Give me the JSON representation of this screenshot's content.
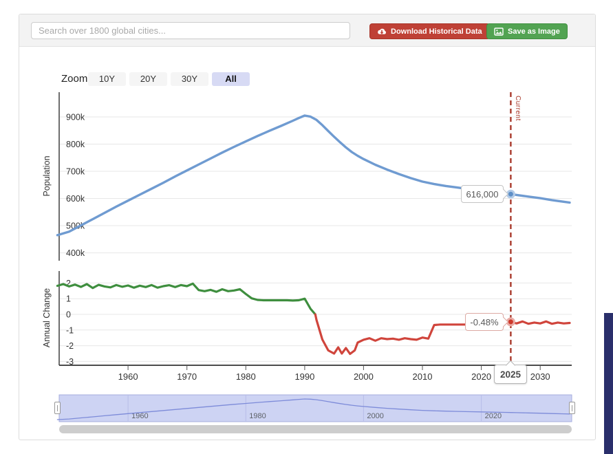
{
  "header": {
    "search_placeholder": "Search over 1800 global cities...",
    "download_button": "Download Historical Data",
    "save_button": "Save as Image",
    "download_color": "#bf4136",
    "save_color": "#52a352"
  },
  "zoom_controls": {
    "label": "Zoom",
    "options": [
      {
        "label": "10Y",
        "active": false
      },
      {
        "label": "20Y",
        "active": false
      },
      {
        "label": "30Y",
        "active": false
      },
      {
        "label": "All",
        "active": true
      }
    ]
  },
  "chart_data": [
    {
      "name": "population-history",
      "type": "line",
      "ylabel": "Population",
      "x_range": [
        1948,
        2035
      ],
      "xticks": [
        1960,
        1970,
        1980,
        1990,
        2000,
        2010,
        2020,
        2030
      ],
      "yticks": [
        {
          "value": 900,
          "label": "900k"
        },
        {
          "value": 800,
          "label": "800k"
        },
        {
          "value": 700,
          "label": "700k"
        },
        {
          "value": 600,
          "label": "600k"
        },
        {
          "value": 500,
          "label": "500k"
        },
        {
          "value": 400,
          "label": "400k"
        }
      ],
      "series": [
        {
          "name": "population",
          "color": "#6f9bd1",
          "unit": "thousands",
          "points": [
            [
              1948,
              465
            ],
            [
              1950,
              478
            ],
            [
              1952,
              501
            ],
            [
              1954,
              524
            ],
            [
              1956,
              547
            ],
            [
              1958,
              570
            ],
            [
              1960,
              592
            ],
            [
              1962,
              614
            ],
            [
              1964,
              636
            ],
            [
              1966,
              658
            ],
            [
              1968,
              681
            ],
            [
              1970,
              703
            ],
            [
              1972,
              725
            ],
            [
              1974,
              747
            ],
            [
              1976,
              769
            ],
            [
              1978,
              790
            ],
            [
              1980,
              810
            ],
            [
              1982,
              830
            ],
            [
              1984,
              849
            ],
            [
              1986,
              867
            ],
            [
              1988,
              886
            ],
            [
              1989,
              896
            ],
            [
              1990,
              905
            ],
            [
              1991,
              901
            ],
            [
              1992,
              889
            ],
            [
              1993,
              870
            ],
            [
              1994,
              848
            ],
            [
              1995,
              827
            ],
            [
              1996,
              807
            ],
            [
              1997,
              788
            ],
            [
              1998,
              771
            ],
            [
              1999,
              757
            ],
            [
              2000,
              745
            ],
            [
              2002,
              724
            ],
            [
              2004,
              706
            ],
            [
              2006,
              690
            ],
            [
              2008,
              675
            ],
            [
              2010,
              662
            ],
            [
              2012,
              653
            ],
            [
              2014,
              646
            ],
            [
              2016,
              640
            ],
            [
              2018,
              634
            ],
            [
              2020,
              629
            ],
            [
              2022,
              624
            ],
            [
              2024,
              619
            ],
            [
              2025,
              616
            ],
            [
              2026,
              613
            ],
            [
              2028,
              607
            ],
            [
              2030,
              601
            ],
            [
              2032,
              594
            ],
            [
              2034,
              588
            ],
            [
              2035,
              585
            ]
          ]
        }
      ],
      "marker": {
        "year": 2025,
        "value": 616000,
        "label": "616,000",
        "color": "#5e8fc7"
      },
      "current_line": {
        "year": 2025,
        "label": "Current",
        "year_label": "2025",
        "color": "#a93a2c"
      }
    },
    {
      "name": "annual-change",
      "type": "line",
      "ylabel": "Annual Change",
      "yticks": [
        {
          "value": 2,
          "label": "2"
        },
        {
          "value": 1,
          "label": "1"
        },
        {
          "value": 0,
          "label": "0"
        },
        {
          "value": -1,
          "label": "-1"
        },
        {
          "value": -2,
          "label": "-2"
        },
        {
          "value": -3,
          "label": "-3"
        }
      ],
      "series": [
        {
          "name": "annual-change-positive",
          "color": "#3e8e3e",
          "unit": "percent",
          "points": [
            [
              1948,
              1.82
            ],
            [
              1949,
              1.93
            ],
            [
              1950,
              1.78
            ],
            [
              1951,
              1.9
            ],
            [
              1952,
              1.75
            ],
            [
              1953,
              1.93
            ],
            [
              1954,
              1.68
            ],
            [
              1955,
              1.88
            ],
            [
              1956,
              1.78
            ],
            [
              1957,
              1.72
            ],
            [
              1958,
              1.87
            ],
            [
              1959,
              1.76
            ],
            [
              1960,
              1.84
            ],
            [
              1961,
              1.7
            ],
            [
              1962,
              1.83
            ],
            [
              1963,
              1.74
            ],
            [
              1964,
              1.87
            ],
            [
              1965,
              1.7
            ],
            [
              1966,
              1.8
            ],
            [
              1967,
              1.86
            ],
            [
              1968,
              1.74
            ],
            [
              1969,
              1.87
            ],
            [
              1970,
              1.8
            ],
            [
              1971,
              1.96
            ],
            [
              1972,
              1.55
            ],
            [
              1973,
              1.48
            ],
            [
              1974,
              1.56
            ],
            [
              1975,
              1.44
            ],
            [
              1976,
              1.6
            ],
            [
              1977,
              1.48
            ],
            [
              1978,
              1.52
            ],
            [
              1979,
              1.6
            ],
            [
              1980,
              1.3
            ],
            [
              1981,
              1.02
            ],
            [
              1982,
              0.92
            ],
            [
              1983,
              0.9
            ],
            [
              1984,
              0.9
            ],
            [
              1985,
              0.9
            ],
            [
              1986,
              0.9
            ],
            [
              1987,
              0.9
            ],
            [
              1988,
              0.88
            ],
            [
              1989,
              0.9
            ],
            [
              1990,
              1.0
            ],
            [
              1991,
              0.35
            ],
            [
              1991.8,
              0
            ]
          ]
        },
        {
          "name": "annual-change-negative",
          "color": "#d0453c",
          "unit": "percent",
          "points": [
            [
              1991.8,
              0
            ],
            [
              1992,
              -0.35
            ],
            [
              1993,
              -1.6
            ],
            [
              1994,
              -2.3
            ],
            [
              1995,
              -2.5
            ],
            [
              1995.7,
              -2.1
            ],
            [
              1996.3,
              -2.5
            ],
            [
              1997,
              -2.15
            ],
            [
              1997.7,
              -2.52
            ],
            [
              1998.5,
              -2.3
            ],
            [
              1999,
              -1.8
            ],
            [
              2000,
              -1.62
            ],
            [
              2001,
              -1.52
            ],
            [
              2002,
              -1.68
            ],
            [
              2003,
              -1.52
            ],
            [
              2004,
              -1.58
            ],
            [
              2005,
              -1.55
            ],
            [
              2006,
              -1.62
            ],
            [
              2007,
              -1.52
            ],
            [
              2008,
              -1.58
            ],
            [
              2009,
              -1.62
            ],
            [
              2010,
              -1.48
            ],
            [
              2011,
              -1.55
            ],
            [
              2012,
              -0.68
            ],
            [
              2013,
              -0.65
            ],
            [
              2015,
              -0.65
            ],
            [
              2017,
              -0.65
            ],
            [
              2019,
              -0.65
            ],
            [
              2021,
              -0.65
            ],
            [
              2023,
              -0.65
            ],
            [
              2024,
              -0.55
            ],
            [
              2025,
              -0.48
            ],
            [
              2026,
              -0.58
            ],
            [
              2027,
              -0.45
            ],
            [
              2028,
              -0.6
            ],
            [
              2029,
              -0.52
            ],
            [
              2030,
              -0.58
            ],
            [
              2031,
              -0.45
            ],
            [
              2032,
              -0.6
            ],
            [
              2033,
              -0.52
            ],
            [
              2034,
              -0.58
            ],
            [
              2035,
              -0.55
            ]
          ]
        }
      ],
      "marker": {
        "year": 2025,
        "value": -0.48,
        "label": "-0.48%",
        "color": "#ce392c"
      }
    },
    {
      "name": "navigator",
      "type": "area",
      "source_series": "population",
      "labels": [
        1960,
        1980,
        2000,
        2020
      ],
      "fill_color": "#cdd3f3",
      "line_color": "#7d8bd9"
    }
  ],
  "colors": {
    "side_bar": "#2a2f6b",
    "dashed_current_line": "#a93a2c"
  }
}
